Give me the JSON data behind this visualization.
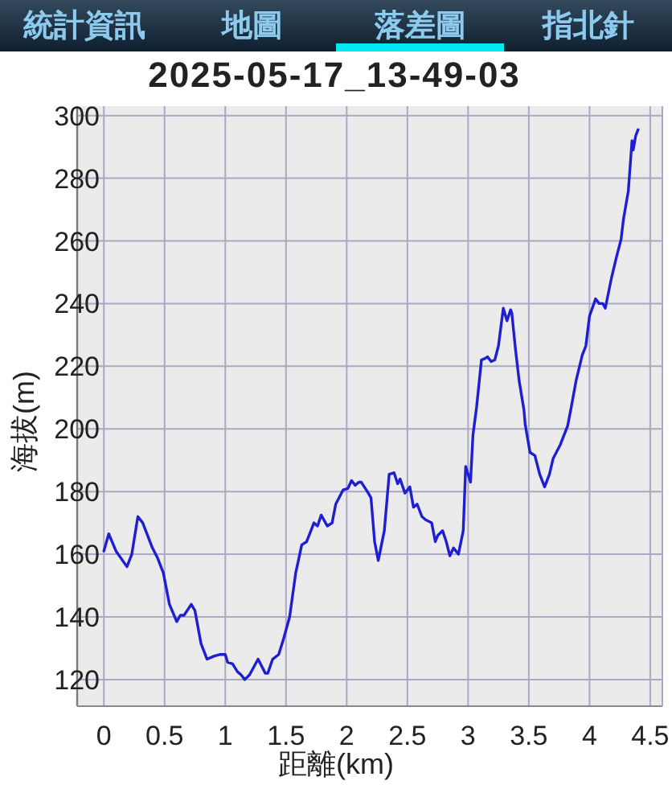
{
  "chart_data": {
    "type": "line",
    "title": "2025-05-17_13-49-03",
    "xlabel": "距離(km)",
    "ylabel": "海拔(m)",
    "annotations": [
      "統計資訊",
      "地圖",
      "落差圖",
      "指北針"
    ],
    "x": [
      0,
      0.04,
      0.1,
      0.19,
      0.23,
      0.28,
      0.32,
      0.4,
      0.44,
      0.49,
      0.54,
      0.6,
      0.63,
      0.66,
      0.72,
      0.75,
      0.8,
      0.85,
      0.91,
      0.96,
      1.0,
      1.02,
      1.06,
      1.1,
      1.13,
      1.16,
      1.2,
      1.27,
      1.33,
      1.35,
      1.39,
      1.44,
      1.48,
      1.53,
      1.58,
      1.63,
      1.67,
      1.7,
      1.73,
      1.76,
      1.79,
      1.84,
      1.88,
      1.91,
      1.97,
      2.01,
      2.04,
      2.07,
      2.1,
      2.12,
      2.17,
      2.2,
      2.23,
      2.26,
      2.31,
      2.35,
      2.39,
      2.42,
      2.44,
      2.48,
      2.52,
      2.55,
      2.58,
      2.62,
      2.65,
      2.7,
      2.73,
      2.75,
      2.79,
      2.82,
      2.85,
      2.88,
      2.92,
      2.96,
      2.98,
      3.02,
      3.04,
      3.07,
      3.11,
      3.14,
      3.16,
      3.19,
      3.22,
      3.25,
      3.29,
      3.32,
      3.35,
      3.36,
      3.39,
      3.42,
      3.46,
      3.47,
      3.51,
      3.55,
      3.59,
      3.63,
      3.67,
      3.7,
      3.76,
      3.82,
      3.85,
      3.89,
      3.94,
      3.97,
      4.0,
      4.05,
      4.08,
      4.11,
      4.13,
      4.18,
      4.22,
      4.26,
      4.28,
      4.32,
      4.35,
      4.36,
      4.38,
      4.4
    ],
    "series": [
      {
        "color": "#1e1ed2",
        "values": [
          161,
          166.5,
          161,
          156,
          160,
          172,
          170,
          162,
          159,
          154,
          144,
          138.5,
          140.5,
          140.5,
          144,
          142,
          131.5,
          126.5,
          127.5,
          128,
          128,
          125.5,
          125,
          122.5,
          121.5,
          120,
          121.5,
          126.5,
          122,
          122,
          126.5,
          128,
          133,
          140,
          154,
          163,
          164,
          167,
          170,
          169,
          172.5,
          169,
          170,
          176,
          180.5,
          181,
          183.5,
          182,
          183,
          183,
          180,
          178,
          164,
          158,
          167.5,
          185.5,
          186,
          182.5,
          184,
          179.5,
          181.5,
          175,
          176,
          172,
          171,
          170,
          164,
          166,
          167.5,
          164,
          159.5,
          162,
          160,
          167.5,
          188,
          183,
          198,
          207,
          222,
          222.5,
          223,
          221.5,
          222,
          226.5,
          238.5,
          234.5,
          238,
          237,
          225.5,
          215.5,
          206,
          201.5,
          192.5,
          191.5,
          185.5,
          181.5,
          185.5,
          190.5,
          195,
          201,
          207,
          215.5,
          223.5,
          226.5,
          236,
          241.5,
          240,
          240,
          238.5,
          248,
          254.5,
          260.5,
          267,
          276,
          292,
          289,
          293.5,
          295.5
        ]
      }
    ],
    "xlim": [
      -0.22,
      4.6
    ],
    "ylim": [
      111.5,
      303
    ],
    "xticks": [
      0,
      0.5,
      1,
      1.5,
      2,
      2.5,
      3,
      3.5,
      4,
      4.5
    ],
    "yticks": [
      120,
      140,
      160,
      180,
      200,
      220,
      240,
      260,
      280,
      300
    ],
    "grid": true
  }
}
